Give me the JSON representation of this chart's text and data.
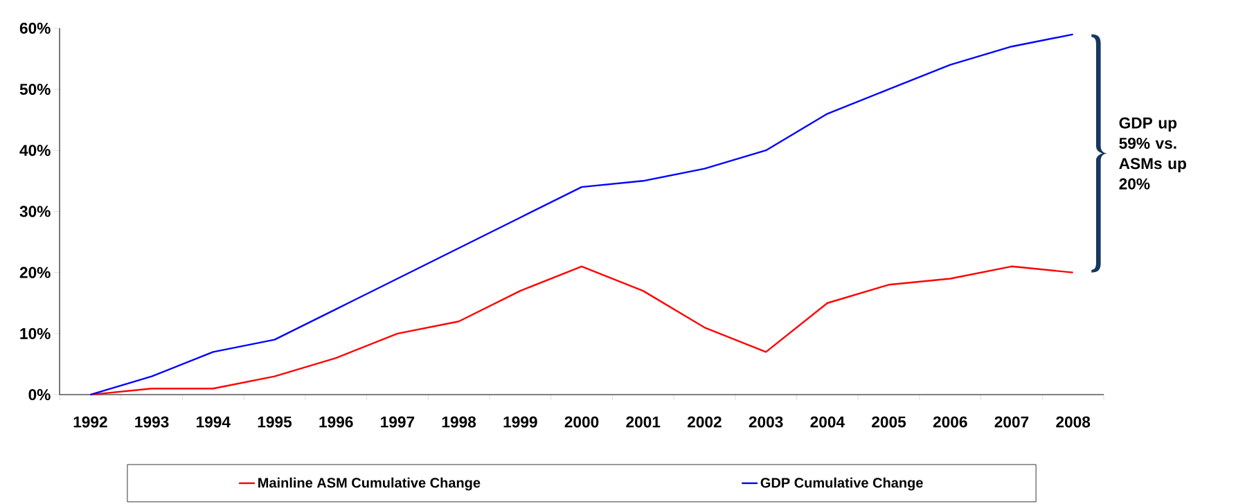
{
  "chart_data": {
    "type": "line",
    "categories": [
      "1992",
      "1993",
      "1994",
      "1995",
      "1996",
      "1997",
      "1998",
      "1999",
      "2000",
      "2001",
      "2002",
      "2003",
      "2004",
      "2005",
      "2006",
      "2007",
      "2008"
    ],
    "series": [
      {
        "name": "Mainline ASM Cumulative Change",
        "color": "#ff0000",
        "values": [
          0,
          1,
          1,
          3,
          6,
          10,
          12,
          17,
          21,
          17,
          11,
          7,
          15,
          18,
          19,
          21,
          20
        ]
      },
      {
        "name": "GDP Cumulative Change",
        "color": "#0000ff",
        "values": [
          0,
          3,
          7,
          9,
          14,
          19,
          24,
          29,
          34,
          35,
          37,
          40,
          46,
          50,
          54,
          57,
          59
        ]
      }
    ],
    "ylim": [
      0,
      60
    ],
    "yticks": [
      {
        "value": 0,
        "label": "0%"
      },
      {
        "value": 10,
        "label": "10%"
      },
      {
        "value": 20,
        "label": "20%"
      },
      {
        "value": 30,
        "label": "30%"
      },
      {
        "value": 40,
        "label": "40%"
      },
      {
        "value": 50,
        "label": "50%"
      },
      {
        "value": 60,
        "label": "60%"
      }
    ],
    "annotations": [
      "GDP up 59% vs. ASMs up 20%"
    ],
    "legend": "bottom",
    "grid": false
  }
}
